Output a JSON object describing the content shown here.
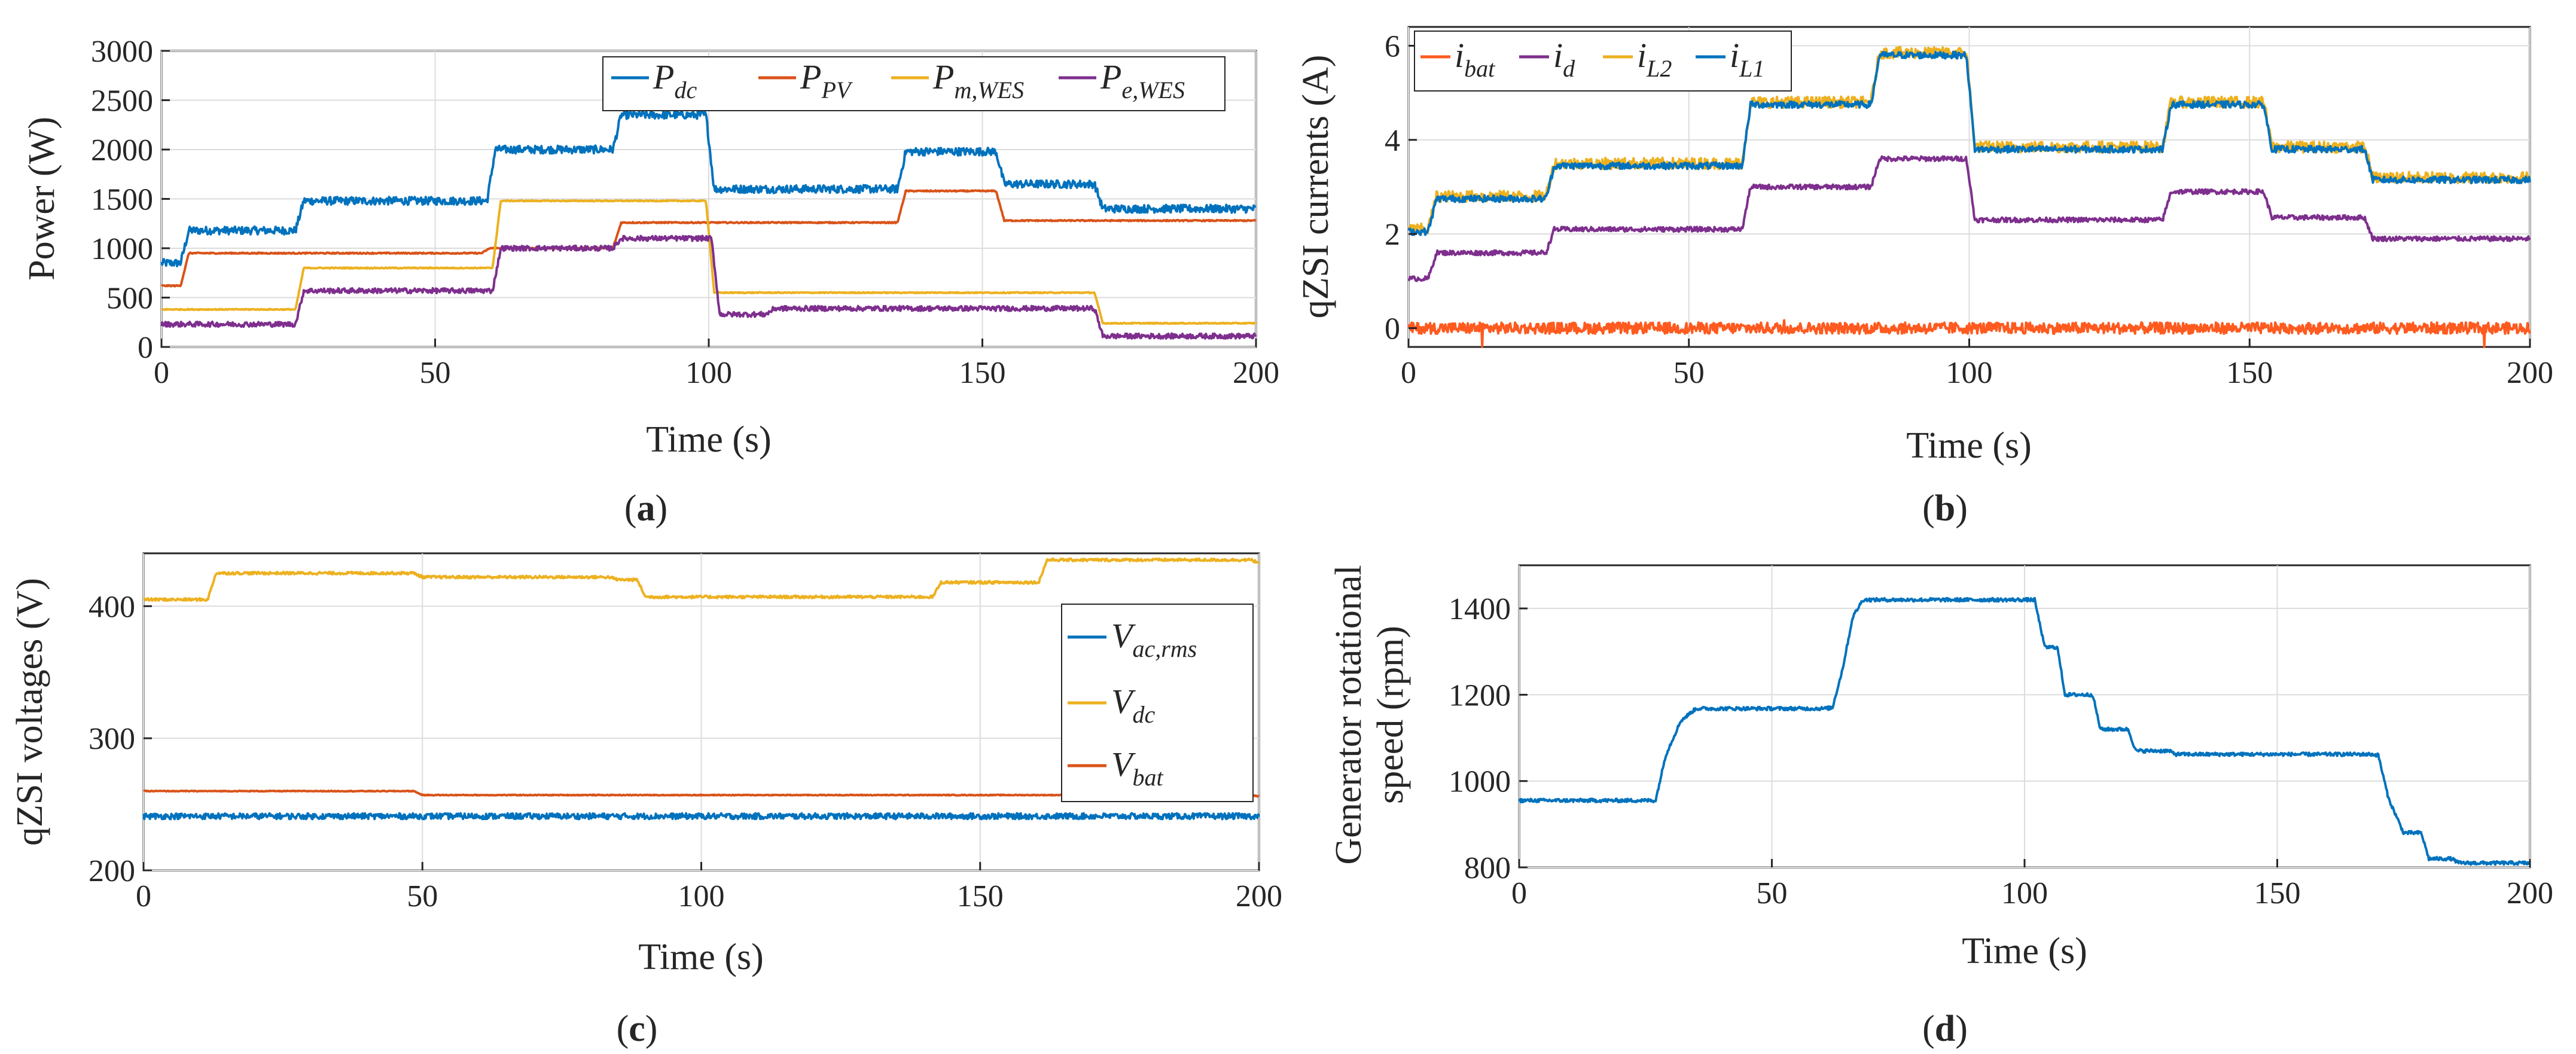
{
  "chart_data": [
    {
      "id": "a",
      "type": "line",
      "caption_letter": "a",
      "xlabel": "Time (s)",
      "ylabel": "Power (W)",
      "xlim": [
        0,
        200
      ],
      "ylim": [
        0,
        3000
      ],
      "xticks": [
        0,
        50,
        100,
        150,
        200
      ],
      "yticks": [
        0,
        500,
        1000,
        1500,
        2000,
        2500,
        3000
      ],
      "grid": true,
      "legend_position": "top-right",
      "legend_layout": "horizontal",
      "series": [
        {
          "name": "P_dc",
          "label_main": "P",
          "label_sub": "dc",
          "color": "#0072BD",
          "noise": 40,
          "steps": [
            [
              0,
              850
            ],
            [
              5,
              1180
            ],
            [
              26,
              1480
            ],
            [
              61,
              2000
            ],
            [
              84,
              2350
            ],
            [
              101,
              1600
            ],
            [
              136,
              1980
            ],
            [
              154,
              1650
            ],
            [
              172,
              1400
            ],
            [
              200,
              1400
            ]
          ]
        },
        {
          "name": "P_PV",
          "label_main": "P",
          "label_sub": "PV",
          "color": "#D95319",
          "noise": 6,
          "steps": [
            [
              0,
              620
            ],
            [
              5,
              950
            ],
            [
              60,
              1000
            ],
            [
              84,
              1260
            ],
            [
              136,
              1580
            ],
            [
              154,
              1280
            ],
            [
              200,
              1280
            ]
          ]
        },
        {
          "name": "P_m,WES",
          "label_main": "P",
          "label_sub": "m,WES",
          "color": "#EDB120",
          "noise": 5,
          "steps": [
            [
              0,
              380
            ],
            [
              26,
              800
            ],
            [
              62,
              1480
            ],
            [
              101,
              550
            ],
            [
              172,
              240
            ],
            [
              200,
              240
            ]
          ]
        },
        {
          "name": "P_e,WES",
          "label_main": "P",
          "label_sub": "e,WES",
          "color": "#7E2F8E",
          "noise": 25,
          "steps": [
            [
              0,
              230
            ],
            [
              26,
              570
            ],
            [
              62,
              1000
            ],
            [
              84,
              1100
            ],
            [
              102,
              330
            ],
            [
              112,
              390
            ],
            [
              172,
              110
            ],
            [
              200,
              110
            ]
          ]
        }
      ]
    },
    {
      "id": "b",
      "type": "line",
      "caption_letter": "b",
      "xlabel": "Time (s)",
      "ylabel": "qZSI currents (A)",
      "xlim": [
        0,
        200
      ],
      "ylim": [
        -0.4,
        6.4
      ],
      "xticks": [
        0,
        50,
        100,
        150,
        200
      ],
      "yticks": [
        0,
        2,
        4,
        6
      ],
      "grid": true,
      "legend_position": "top-left",
      "legend_layout": "horizontal",
      "series": [
        {
          "name": "i_bat",
          "label_main": "i",
          "label_sub": "bat",
          "color": "#FF5A1F",
          "noise": 0.12,
          "steps": [
            [
              0,
              0
            ],
            [
              200,
              0
            ]
          ]
        },
        {
          "name": "i_d",
          "label_main": "i",
          "label_sub": "d",
          "color": "#7E2F8E",
          "noise": 0.05,
          "steps": [
            [
              0,
              1.05
            ],
            [
              5,
              1.6
            ],
            [
              26,
              2.1
            ],
            [
              61,
              3.0
            ],
            [
              84,
              3.6
            ],
            [
              101,
              2.3
            ],
            [
              136,
              2.9
            ],
            [
              154,
              2.35
            ],
            [
              172,
              1.9
            ],
            [
              200,
              1.9
            ]
          ]
        },
        {
          "name": "i_L2",
          "label_main": "i",
          "label_sub": "L2",
          "color": "#EDB120",
          "noise": 0.12,
          "steps": [
            [
              0,
              2.1
            ],
            [
              5,
              2.8
            ],
            [
              26,
              3.5
            ],
            [
              61,
              4.8
            ],
            [
              84,
              5.85
            ],
            [
              101,
              3.85
            ],
            [
              136,
              4.8
            ],
            [
              154,
              3.85
            ],
            [
              172,
              3.2
            ],
            [
              200,
              3.2
            ]
          ]
        },
        {
          "name": "i_L1",
          "label_main": "i",
          "label_sub": "L1",
          "color": "#0072BD",
          "noise": 0.07,
          "steps": [
            [
              0,
              2.05
            ],
            [
              5,
              2.75
            ],
            [
              26,
              3.45
            ],
            [
              61,
              4.75
            ],
            [
              84,
              5.8
            ],
            [
              101,
              3.8
            ],
            [
              136,
              4.75
            ],
            [
              154,
              3.8
            ],
            [
              172,
              3.15
            ],
            [
              200,
              3.15
            ]
          ]
        }
      ]
    },
    {
      "id": "c",
      "type": "line",
      "caption_letter": "c",
      "xlabel": "Time (s)",
      "ylabel": "qZSI voltages (V)",
      "xlim": [
        0,
        200
      ],
      "ylim": [
        200,
        440
      ],
      "xticks": [
        0,
        50,
        100,
        150,
        200
      ],
      "yticks": [
        200,
        300,
        400
      ],
      "grid": true,
      "legend_position": "right",
      "legend_layout": "vertical",
      "series": [
        {
          "name": "V_ac,rms",
          "label_main": "V",
          "label_sub": "ac,rms",
          "color": "#0072BD",
          "noise": 2.2,
          "steps": [
            [
              0,
              241
            ],
            [
              200,
              241
            ]
          ]
        },
        {
          "name": "V_dc",
          "label_main": "V",
          "label_sub": "dc",
          "color": "#EDB120",
          "noise": 1,
          "steps": [
            [
              0,
              405
            ],
            [
              8,
              405
            ],
            [
              13,
              425
            ],
            [
              50,
              422
            ],
            [
              85,
              420
            ],
            [
              90,
              407
            ],
            [
              138,
              407
            ],
            [
              143,
              418
            ],
            [
              155,
              418
            ],
            [
              162,
              435
            ],
            [
              200,
              433
            ]
          ]
        },
        {
          "name": "V_bat",
          "label_main": "V",
          "label_sub": "bat",
          "color": "#D95319",
          "noise": 0.3,
          "steps": [
            [
              0,
              260
            ],
            [
              50,
              257
            ],
            [
              200,
              256
            ]
          ]
        }
      ]
    },
    {
      "id": "d",
      "type": "line",
      "caption_letter": "d",
      "xlabel": "Time (s)",
      "ylabel_line1": "Generator rotational",
      "ylabel_line2": "speed (rpm)",
      "xlim": [
        0,
        200
      ],
      "ylim": [
        800,
        1500
      ],
      "xticks": [
        0,
        50,
        100,
        150,
        200
      ],
      "yticks": [
        800,
        1000,
        1200,
        1400
      ],
      "grid": true,
      "series": [
        {
          "name": "speed",
          "color": "#0072BD",
          "noise": 4,
          "steps": [
            [
              0,
              955
            ],
            [
              27,
              955
            ],
            [
              29,
              1060
            ],
            [
              32,
              1140
            ],
            [
              35,
              1168
            ],
            [
              62,
              1170
            ],
            [
              64,
              1260
            ],
            [
              66,
              1380
            ],
            [
              68,
              1420
            ],
            [
              102,
              1420
            ],
            [
              104,
              1310
            ],
            [
              108,
              1200
            ],
            [
              115,
              1120
            ],
            [
              122,
              1070
            ],
            [
              130,
              1062
            ],
            [
              170,
              1060
            ],
            [
              172,
              960
            ],
            [
              175,
              880
            ],
            [
              180,
              820
            ],
            [
              186,
              810
            ],
            [
              200,
              810
            ]
          ]
        }
      ]
    }
  ]
}
